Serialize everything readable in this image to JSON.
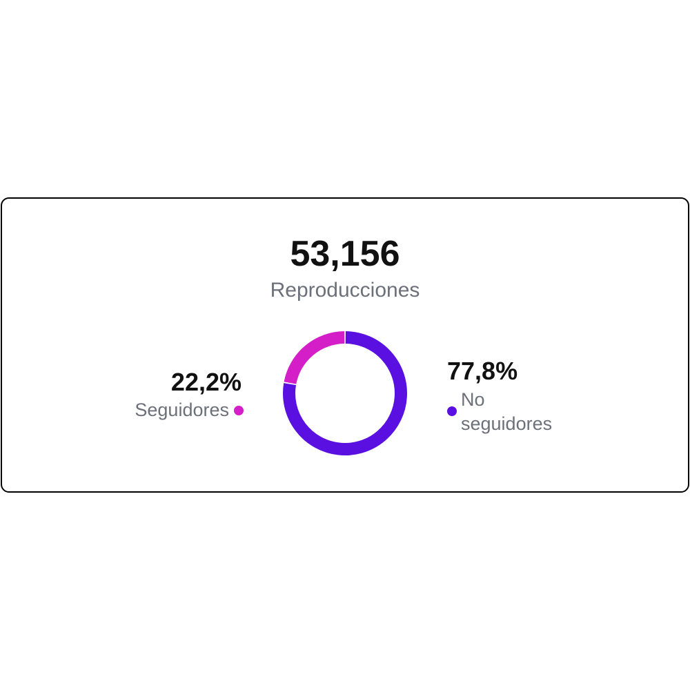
{
  "chart_data": {
    "type": "pie",
    "title": "53,156",
    "subtitle": "Reproducciones",
    "categories": [
      "Seguidores",
      "No seguidores"
    ],
    "values": [
      22.2,
      77.8
    ],
    "value_labels": [
      "22,2%",
      "77,8%"
    ],
    "colors": [
      "#d41ec8",
      "#5a10e0"
    ]
  }
}
